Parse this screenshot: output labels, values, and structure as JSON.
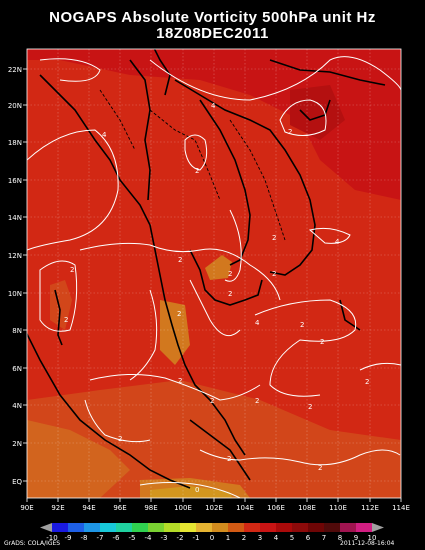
{
  "title": "NOGAPS Absolute Vorticity 500hPa unit Hz",
  "subtitle": "18Z08DEC2011",
  "credit_left": "GrADS: COLA/IGES",
  "credit_right": "2011-12-08-16:04",
  "lat_labels": [
    "22N",
    "20N",
    "18N",
    "16N",
    "14N",
    "12N",
    "10N",
    "8N",
    "6N",
    "4N",
    "2N",
    "EQ"
  ],
  "lon_labels": [
    "90E",
    "92E",
    "94E",
    "96E",
    "98E",
    "100E",
    "102E",
    "104E",
    "106E",
    "108E",
    "110E",
    "112E",
    "114E"
  ],
  "colorbar": {
    "labels": [
      "-10",
      "-9",
      "-8",
      "-7",
      "-6",
      "-5",
      "-4",
      "-3",
      "-2",
      "-1",
      "0",
      "1",
      "2",
      "3",
      "4",
      "5",
      "6",
      "7",
      "8",
      "9",
      "10"
    ],
    "colors": [
      "#1a1ae0",
      "#1e5fe6",
      "#1e96e6",
      "#18c8d8",
      "#20d2a0",
      "#30d250",
      "#7ad232",
      "#b4dc28",
      "#e6e632",
      "#e6b432",
      "#d28c1e",
      "#d25a14",
      "#d22814",
      "#c81414",
      "#aa0a0a",
      "#8c0a0a",
      "#6e0505",
      "#500a0a",
      "#a01450",
      "#d21e82"
    ]
  },
  "contour_labels": [
    "4",
    "4",
    "2",
    "2",
    "2",
    "2",
    "2",
    "2",
    "4",
    "2",
    "2",
    "2",
    "2",
    "2",
    "2",
    "2",
    "4",
    "2",
    "2",
    "2",
    "2",
    "2",
    "2",
    "2",
    "0"
  ]
}
